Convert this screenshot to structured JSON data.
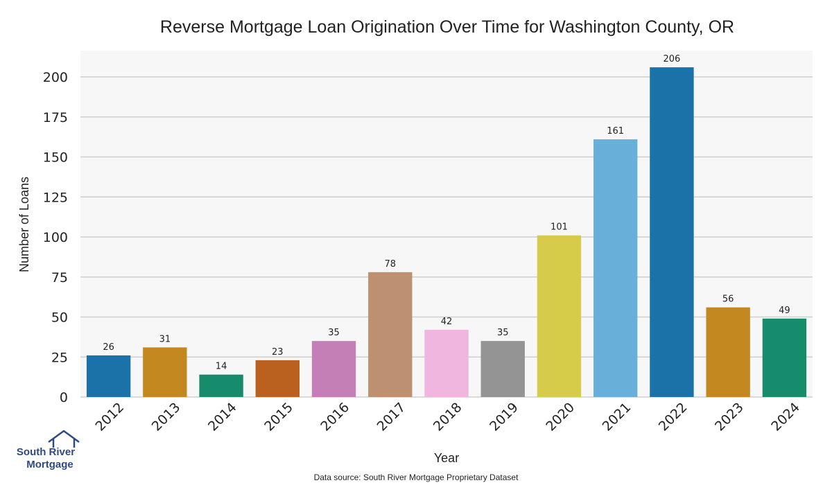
{
  "chart_data": {
    "type": "bar",
    "title": "Reverse Mortgage Loan Origination Over Time for Washington County, OR",
    "xlabel": "Year",
    "ylabel": "Number of Loans",
    "categories": [
      "2012",
      "2013",
      "2014",
      "2015",
      "2016",
      "2017",
      "2018",
      "2019",
      "2020",
      "2021",
      "2022",
      "2023",
      "2024"
    ],
    "values": [
      26,
      31,
      14,
      23,
      35,
      78,
      42,
      35,
      101,
      161,
      206,
      56,
      49
    ],
    "colors": [
      "#1a72a8",
      "#c48820",
      "#178c6c",
      "#bb6120",
      "#c480b6",
      "#bc9070",
      "#f0b6e0",
      "#949494",
      "#d6cc4a",
      "#68b0da",
      "#1a72a8",
      "#c48820",
      "#178c6c"
    ],
    "ylim": [
      0,
      206
    ],
    "yticks": [
      0,
      25,
      50,
      75,
      100,
      125,
      150,
      175,
      200
    ],
    "grid": true,
    "legend": "none"
  },
  "footer": {
    "source": "Data source: South River Mortgage Proprietary Dataset",
    "logo_line1": "South River",
    "logo_line2": "Mortgage"
  }
}
